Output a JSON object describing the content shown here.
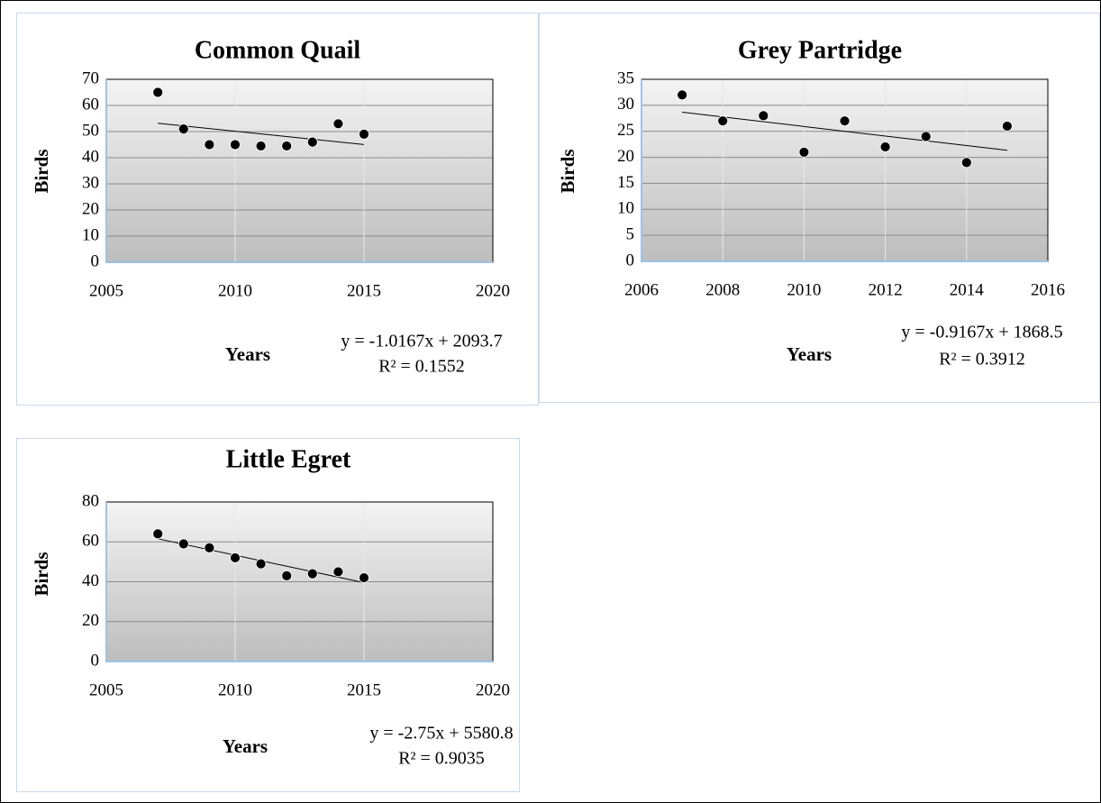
{
  "chart_data": [
    {
      "type": "scatter",
      "title": "Common Quail",
      "x_label": "Years",
      "y_label": "Birds",
      "x": [
        2007,
        2008,
        2009,
        2010,
        2011,
        2012,
        2013,
        2014,
        2015
      ],
      "values": [
        65,
        51,
        45,
        45,
        44.5,
        44.5,
        46,
        53,
        49
      ],
      "color": "#000000",
      "xlim": [
        2005,
        2020
      ],
      "xticks": [
        2005,
        2010,
        2015,
        2020
      ],
      "ylim": [
        0,
        70
      ],
      "yticks": [
        0,
        10,
        20,
        30,
        40,
        50,
        60,
        70
      ],
      "grid": true,
      "trendline_x": [
        2007,
        2015
      ],
      "trendline_y": [
        53.18,
        45.05
      ],
      "equation": "y = -1.0167x + 2093.7",
      "r_squared": "R² = 0.1552"
    },
    {
      "type": "scatter",
      "title": "Grey Partridge",
      "x_label": "Years",
      "y_label": "Birds",
      "x": [
        2007,
        2008,
        2009,
        2010,
        2011,
        2012,
        2013,
        2014,
        2015
      ],
      "values": [
        32,
        27,
        28,
        21,
        27,
        22,
        24,
        19,
        26
      ],
      "color": "#000000",
      "xlim": [
        2006,
        2016
      ],
      "xticks": [
        2006,
        2008,
        2010,
        2012,
        2014,
        2016
      ],
      "ylim": [
        0,
        35
      ],
      "yticks": [
        0,
        5,
        10,
        15,
        20,
        25,
        30,
        35
      ],
      "grid": true,
      "trendline_x": [
        2007,
        2015
      ],
      "trendline_y": [
        28.68,
        21.35
      ],
      "equation": "y = -0.9167x + 1868.5",
      "r_squared": "R² = 0.3912"
    },
    {
      "type": "scatter",
      "title": "Little Egret",
      "x_label": "Years",
      "y_label": "Birds",
      "x": [
        2007,
        2008,
        2009,
        2010,
        2011,
        2012,
        2013,
        2014,
        2015
      ],
      "values": [
        64,
        59,
        57,
        52,
        49,
        43,
        44,
        45,
        42
      ],
      "color": "#000000",
      "xlim": [
        2005,
        2020
      ],
      "xticks": [
        2005,
        2010,
        2015,
        2020
      ],
      "ylim": [
        0,
        80
      ],
      "yticks": [
        0,
        20,
        40,
        60,
        80
      ],
      "grid": true,
      "trendline_x": [
        2007,
        2015
      ],
      "trendline_y": [
        61.55,
        39.55
      ],
      "equation": "y = -2.75x + 5580.8",
      "r_squared": "R² = 0.9035"
    }
  ]
}
